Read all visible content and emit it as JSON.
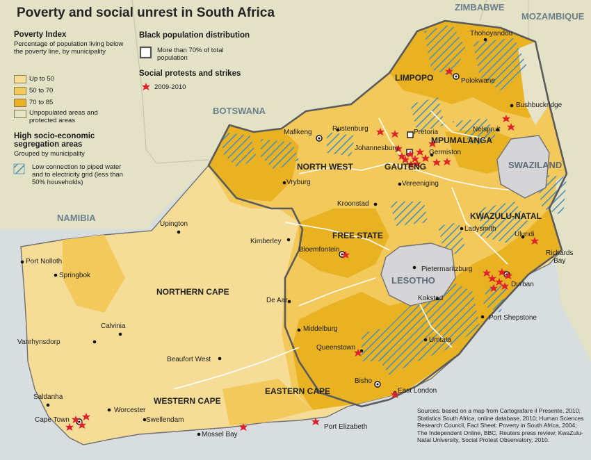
{
  "title": "Poverty and social unrest in South Africa",
  "legend": {
    "poverty_heading": "Poverty Index",
    "poverty_desc": "Percentage of population living below the poverty line, by municipality",
    "classes": [
      {
        "label": "Up to 50",
        "color": "#f6dd97"
      },
      {
        "label": "50 to 70",
        "color": "#f2c95a"
      },
      {
        "label": "70 to 85",
        "color": "#e8b223"
      },
      {
        "label": "Unpopulated areas and protected areas",
        "color": "#e6e3c8"
      }
    ],
    "segregation_heading": "High socio-economic segregation areas",
    "segregation_sub": "Grouped by municipality",
    "segregation_item": "Low connection to piped water and to electricity grid (less than 50% households)",
    "black_heading": "Black population distribution",
    "black_item": "More than 70% of total population",
    "protest_heading": "Social protests and strikes",
    "protest_item": "2009-2010"
  },
  "colors": {
    "sea": "#d8dde0",
    "neighbours": "#e4e2c6",
    "hatch": "#4d8fb4",
    "protest": "#e0232b",
    "border": "#707070",
    "enclave": "#d5d5d8"
  },
  "countries": {
    "zimbabwe": "ZIMBABWE",
    "mozambique": "MOZAMBIQUE",
    "botswana": "BOTSWANA",
    "namibia": "NAMIBIA",
    "swaziland": "SWAZILAND",
    "lesotho": "LESOTHO"
  },
  "provinces": {
    "limpopo": "LIMPOPO",
    "mpumalanga": "MPUMALANGA",
    "north_west": "NORTH WEST",
    "gauteng": "GAUTENG",
    "kwazulu_natal": "KWAZULU-NATAL",
    "free_state": "FREE STATE",
    "northern_cape": "NORTHERN CAPE",
    "eastern_cape": "EASTERN CAPE",
    "western_cape": "WESTERN CAPE"
  },
  "cities": {
    "thohoyandou": "Thohoyandou",
    "polokwane": "Polokwane",
    "bushbuckridge": "Bushbuckridge",
    "nelspruit": "Nelspruit",
    "mafikeng": "Mafikeng",
    "rustenburg": "Rustenburg",
    "pretoria": "Pretoria",
    "johannesburg": "Johannesburg",
    "germiston": "Germiston",
    "vryburg": "Vryburg",
    "vereeniging": "Vereeniging",
    "kroonstad": "Kroonstad",
    "upington": "Upington",
    "kimberley": "Kimberley",
    "bloemfontein": "Bloemfontein",
    "ladysmith": "Ladysmith",
    "ulundi": "Ulundi",
    "richards_bay": "Richards\nBay",
    "port_nolloth": "Port Nolloth",
    "springbok": "Springbok",
    "pietermaritzburg": "Pietermaritzburg",
    "durban": "Durban",
    "de_aar": "De Aar",
    "kokstad": "Kokstad",
    "calvinia": "Calvinia",
    "port_shepstone": "Port Shepstone",
    "middelburg": "Middelburg",
    "vanrhynsdorp": "Vanrhynsdorp",
    "queenstown": "Queenstown",
    "umtata": "Umtata",
    "beaufort_west": "Beaufort West",
    "bisho": "Bisho",
    "east_london": "East London",
    "saldanha": "Saldanha",
    "worcester": "Worcester",
    "cape_town": "Cape Town",
    "swellendam": "Swellendam",
    "mossel_bay": "Mossel Bay",
    "port_elizabeth": "Port Elizabeth"
  },
  "sources": "Sources: based on a map from Cartografare il Presente, 2010; Statistics South Africa, online database, 2010; Human Sciences Research Council, Fact Sheet: Poverty in South Africa, 2004; The Independent Online, BBC, Reuters press review; KwaZulu-Natal University, Social Protest Observatory, 2010."
}
